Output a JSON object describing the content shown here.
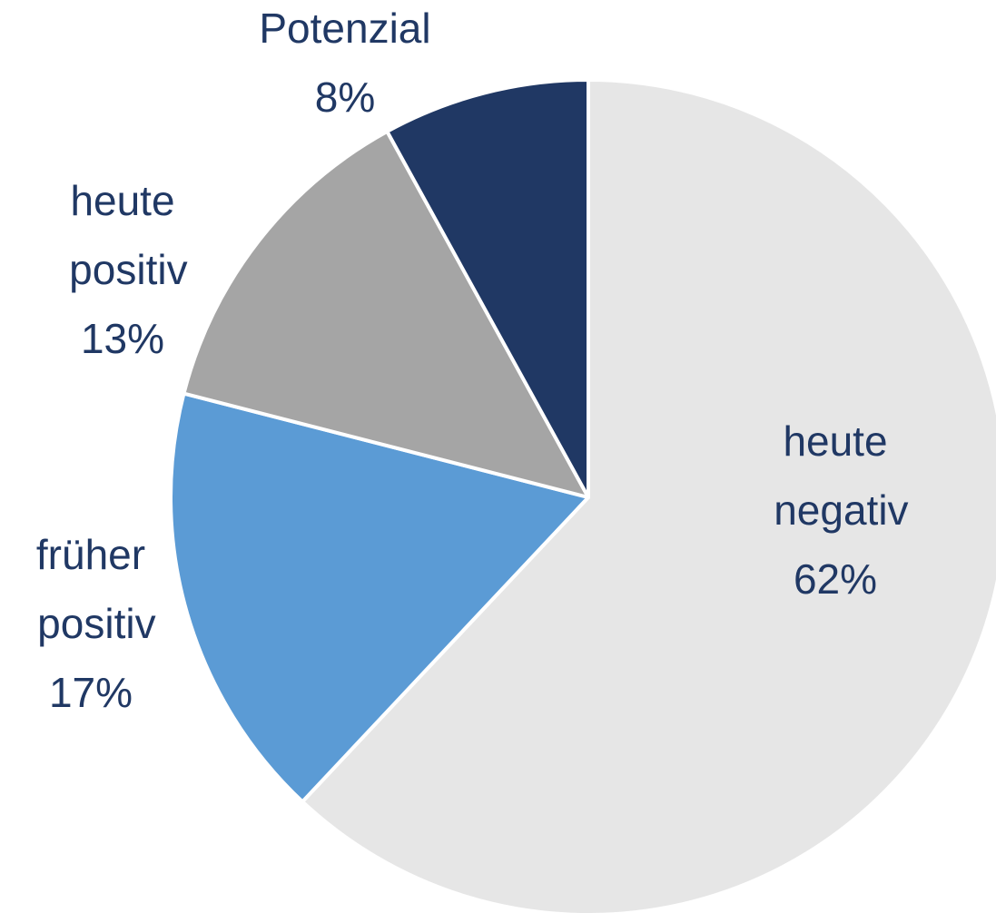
{
  "chart_data": {
    "type": "pie",
    "categories": [
      "heute negativ",
      "früher positiv",
      "heute positiv",
      "Potenzial"
    ],
    "values": [
      62,
      17,
      13,
      8
    ],
    "value_labels": [
      "62%",
      "17%",
      "13%",
      "8%"
    ],
    "colors": [
      "#e6e6e6",
      "#5b9bd5",
      "#a5a5a5",
      "#203864"
    ]
  }
}
